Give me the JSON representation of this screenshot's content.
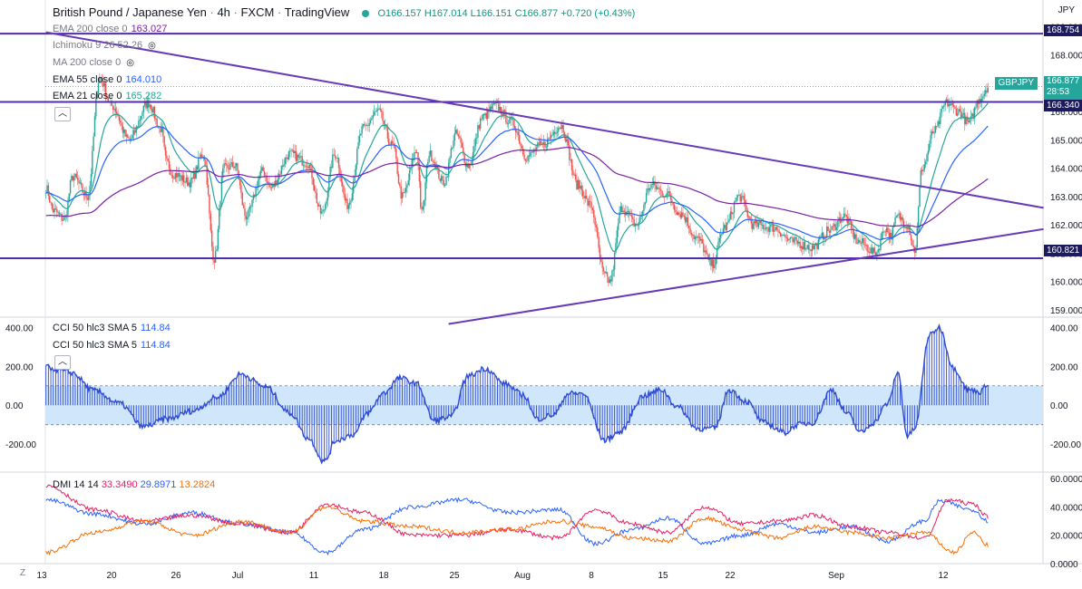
{
  "header": {
    "title": "British Pound / Japanese Yen · 4h · FXCM · TradingView",
    "title_parts": [
      "British Pound / Japanese Yen",
      "4h",
      "FXCM",
      "TradingView"
    ],
    "open": "O166.157",
    "high": "H167.014",
    "low": "L166.151",
    "close": "C166.877",
    "change": "+0.720 (+0.43%)",
    "currency": "JPY"
  },
  "legend": {
    "ema200": {
      "label": "EMA 200 close 0",
      "value": "163.027"
    },
    "ichimoku": {
      "label": "Ichimoku 9 26 52 26"
    },
    "ma200": {
      "label": "MA 200 close 0"
    },
    "ema55": {
      "label": "EMA 55 close 0",
      "value": "164.010"
    },
    "ema21": {
      "label": "EMA 21 close 0",
      "value": "165.282"
    },
    "cci1": {
      "label": "CCI 50 hlc3 SMA 5",
      "value": "114.84"
    },
    "cci2": {
      "label": "CCI 50 hlc3 SMA 5",
      "value": "114.84"
    },
    "dmi": {
      "label": "DMI 14 14",
      "v1": "33.3490",
      "v2": "29.8971",
      "v3": "13.2824"
    }
  },
  "tags": {
    "symbol": "GBPJPY",
    "last_price": "166.877",
    "countdown": "28:53",
    "level_top": "168.754",
    "level_mid": "166.340",
    "level_low": "160.821"
  },
  "colors": {
    "up": "#26a69a",
    "down": "#ef5350",
    "ema21": "#26a69a",
    "ema55": "#2962ff",
    "ema200": "#7b1fa2",
    "trendline": "#673ab7",
    "cci": "#2e4bd3",
    "cci_band": "#cfe6fb",
    "dmi_plus": "#2962ff",
    "dmi_minus": "#e91e63",
    "adx": "#ff6d00"
  },
  "chart_data": [
    {
      "type": "candlestick",
      "title": "British Pound / Japanese Yen · 4h · FXCM",
      "x_tick_labels": [
        "13",
        "20",
        "26",
        "Jul",
        "11",
        "18",
        "25",
        "Aug",
        "8",
        "15",
        "22",
        "Sep",
        "12"
      ],
      "y_tick_labels": [
        "169.000",
        "168.000",
        "167.000",
        "166.000",
        "165.000",
        "164.000",
        "163.000",
        "162.000",
        "161.000",
        "160.000",
        "159.000"
      ],
      "ylim": [
        158.9,
        169.3
      ],
      "anchors": [
        [
          0,
          163.3
        ],
        [
          6,
          162.5
        ],
        [
          15,
          162.2
        ],
        [
          22,
          163.7
        ],
        [
          34,
          163.0
        ],
        [
          44,
          167.2
        ],
        [
          54,
          166.2
        ],
        [
          68,
          165.0
        ],
        [
          84,
          166.3
        ],
        [
          94,
          165.4
        ],
        [
          99,
          164.2
        ],
        [
          104,
          163.8
        ],
        [
          118,
          163.5
        ],
        [
          129,
          164.5
        ],
        [
          138,
          160.8
        ],
        [
          146,
          164.0
        ],
        [
          155,
          164.1
        ],
        [
          164,
          162.3
        ],
        [
          178,
          163.9
        ],
        [
          184,
          163.3
        ],
        [
          200,
          164.5
        ],
        [
          214,
          164.2
        ],
        [
          226,
          162.4
        ],
        [
          237,
          164.5
        ],
        [
          247,
          162.7
        ],
        [
          260,
          165.4
        ],
        [
          272,
          166.0
        ],
        [
          284,
          164.8
        ],
        [
          292,
          163.0
        ],
        [
          304,
          164.6
        ],
        [
          308,
          162.4
        ],
        [
          314,
          164.5
        ],
        [
          326,
          163.5
        ],
        [
          336,
          165.2
        ],
        [
          346,
          164.1
        ],
        [
          358,
          165.8
        ],
        [
          368,
          166.2
        ],
        [
          382,
          165.6
        ],
        [
          394,
          164.4
        ],
        [
          406,
          164.8
        ],
        [
          422,
          165.5
        ],
        [
          436,
          163.4
        ],
        [
          446,
          162.7
        ],
        [
          458,
          160.2
        ],
        [
          462,
          160.0
        ],
        [
          472,
          162.6
        ],
        [
          484,
          162.0
        ],
        [
          496,
          163.4
        ],
        [
          508,
          163.1
        ],
        [
          520,
          162.4
        ],
        [
          534,
          161.5
        ],
        [
          546,
          160.6
        ],
        [
          556,
          161.9
        ],
        [
          568,
          163.0
        ],
        [
          580,
          162.0
        ],
        [
          596,
          161.9
        ],
        [
          612,
          161.4
        ],
        [
          628,
          161.2
        ],
        [
          642,
          161.8
        ],
        [
          654,
          162.3
        ],
        [
          666,
          161.4
        ],
        [
          680,
          161.0
        ],
        [
          688,
          161.9
        ],
        [
          692,
          161.6
        ],
        [
          698,
          162.3
        ],
        [
          706,
          162.0
        ],
        [
          712,
          161.1
        ],
        [
          718,
          164.0
        ],
        [
          728,
          165.3
        ],
        [
          738,
          166.3
        ],
        [
          748,
          166.0
        ],
        [
          756,
          165.6
        ],
        [
          766,
          166.5
        ],
        [
          772,
          166.88
        ]
      ],
      "candle_count": 773,
      "indicators": [
        {
          "name": "EMA 21",
          "value": 165.282
        },
        {
          "name": "EMA 55",
          "value": 164.01
        },
        {
          "name": "EMA 200",
          "value": 163.027
        }
      ],
      "horizontal_levels": [
        168.754,
        166.34,
        160.821
      ],
      "trendlines": [
        {
          "from": [
            0,
            168.8
          ],
          "to": [
            773,
            162.6
          ]
        },
        {
          "from": [
            330,
            158.5
          ],
          "to": [
            773,
            161.85
          ]
        }
      ]
    },
    {
      "type": "area",
      "title": "CCI 50 hlc3 SMA 5",
      "y_tick_labels": [
        "400.00",
        "200.00",
        "0.00",
        "-200.00"
      ],
      "ylim": [
        -330,
        430
      ],
      "band": [
        -100,
        100
      ],
      "last_value": 114.84,
      "anchors": [
        [
          0,
          195
        ],
        [
          20,
          170
        ],
        [
          40,
          75
        ],
        [
          60,
          10
        ],
        [
          80,
          -110
        ],
        [
          100,
          -70
        ],
        [
          120,
          -30
        ],
        [
          140,
          40
        ],
        [
          160,
          160
        ],
        [
          180,
          95
        ],
        [
          200,
          -40
        ],
        [
          215,
          -170
        ],
        [
          228,
          -290
        ],
        [
          238,
          -180
        ],
        [
          252,
          -150
        ],
        [
          264,
          -40
        ],
        [
          276,
          60
        ],
        [
          290,
          140
        ],
        [
          304,
          110
        ],
        [
          318,
          -80
        ],
        [
          332,
          -60
        ],
        [
          346,
          150
        ],
        [
          360,
          190
        ],
        [
          376,
          110
        ],
        [
          392,
          50
        ],
        [
          402,
          -70
        ],
        [
          416,
          -50
        ],
        [
          428,
          60
        ],
        [
          440,
          60
        ],
        [
          458,
          -180
        ],
        [
          470,
          -140
        ],
        [
          490,
          50
        ],
        [
          504,
          80
        ],
        [
          518,
          -10
        ],
        [
          534,
          -120
        ],
        [
          548,
          -120
        ],
        [
          560,
          80
        ],
        [
          574,
          20
        ],
        [
          588,
          -90
        ],
        [
          606,
          -140
        ],
        [
          616,
          -100
        ],
        [
          628,
          -90
        ],
        [
          644,
          80
        ],
        [
          656,
          -40
        ],
        [
          668,
          -140
        ],
        [
          678,
          -90
        ],
        [
          690,
          10
        ],
        [
          698,
          170
        ],
        [
          706,
          -160
        ],
        [
          712,
          -120
        ],
        [
          724,
          360
        ],
        [
          732,
          400
        ],
        [
          744,
          190
        ],
        [
          756,
          80
        ],
        [
          766,
          70
        ],
        [
          772,
          115
        ]
      ]
    },
    {
      "type": "line",
      "title": "DMI 14 14",
      "y_tick_labels": [
        "60.0000",
        "40.0000",
        "20.0000",
        "0.0000"
      ],
      "ylim": [
        0,
        62
      ],
      "series": [
        {
          "name": "+DI",
          "last": 29.8971,
          "anchors": [
            [
              0,
              45
            ],
            [
              40,
              35
            ],
            [
              80,
              28
            ],
            [
              120,
              36
            ],
            [
              160,
              28
            ],
            [
              200,
              22
            ],
            [
              230,
              8
            ],
            [
              260,
              24
            ],
            [
              300,
              40
            ],
            [
              340,
              45
            ],
            [
              380,
              36
            ],
            [
              420,
              38
            ],
            [
              450,
              14
            ],
            [
              480,
              24
            ],
            [
              510,
              32
            ],
            [
              540,
              14
            ],
            [
              570,
              20
            ],
            [
              600,
              28
            ],
            [
              630,
              22
            ],
            [
              660,
              26
            ],
            [
              690,
              16
            ],
            [
              720,
              30
            ],
            [
              732,
              44
            ],
            [
              760,
              38
            ],
            [
              772,
              30
            ]
          ]
        },
        {
          "name": "-DI",
          "last": 33.349,
          "anchors": [
            [
              0,
              55
            ],
            [
              40,
              38
            ],
            [
              80,
              30
            ],
            [
              120,
              34
            ],
            [
              160,
              28
            ],
            [
              200,
              22
            ],
            [
              230,
              42
            ],
            [
              260,
              36
            ],
            [
              300,
              20
            ],
            [
              340,
              20
            ],
            [
              380,
              24
            ],
            [
              420,
              18
            ],
            [
              450,
              38
            ],
            [
              480,
              28
            ],
            [
              510,
              22
            ],
            [
              540,
              40
            ],
            [
              570,
              28
            ],
            [
              600,
              30
            ],
            [
              630,
              34
            ],
            [
              660,
              26
            ],
            [
              690,
              22
            ],
            [
              720,
              18
            ],
            [
              740,
              45
            ],
            [
              760,
              42
            ],
            [
              772,
              33
            ]
          ]
        },
        {
          "name": "ADX",
          "last": 13.2824,
          "anchors": [
            [
              0,
              8
            ],
            [
              40,
              22
            ],
            [
              80,
              30
            ],
            [
              120,
              20
            ],
            [
              160,
              30
            ],
            [
              200,
              22
            ],
            [
              230,
              40
            ],
            [
              260,
              30
            ],
            [
              300,
              26
            ],
            [
              340,
              22
            ],
            [
              380,
              24
            ],
            [
              420,
              30
            ],
            [
              450,
              26
            ],
            [
              480,
              18
            ],
            [
              510,
              16
            ],
            [
              540,
              32
            ],
            [
              570,
              24
            ],
            [
              600,
              18
            ],
            [
              630,
              26
            ],
            [
              660,
              22
            ],
            [
              690,
              18
            ],
            [
              720,
              22
            ],
            [
              744,
              8
            ],
            [
              760,
              22
            ],
            [
              772,
              13
            ]
          ]
        }
      ]
    }
  ]
}
